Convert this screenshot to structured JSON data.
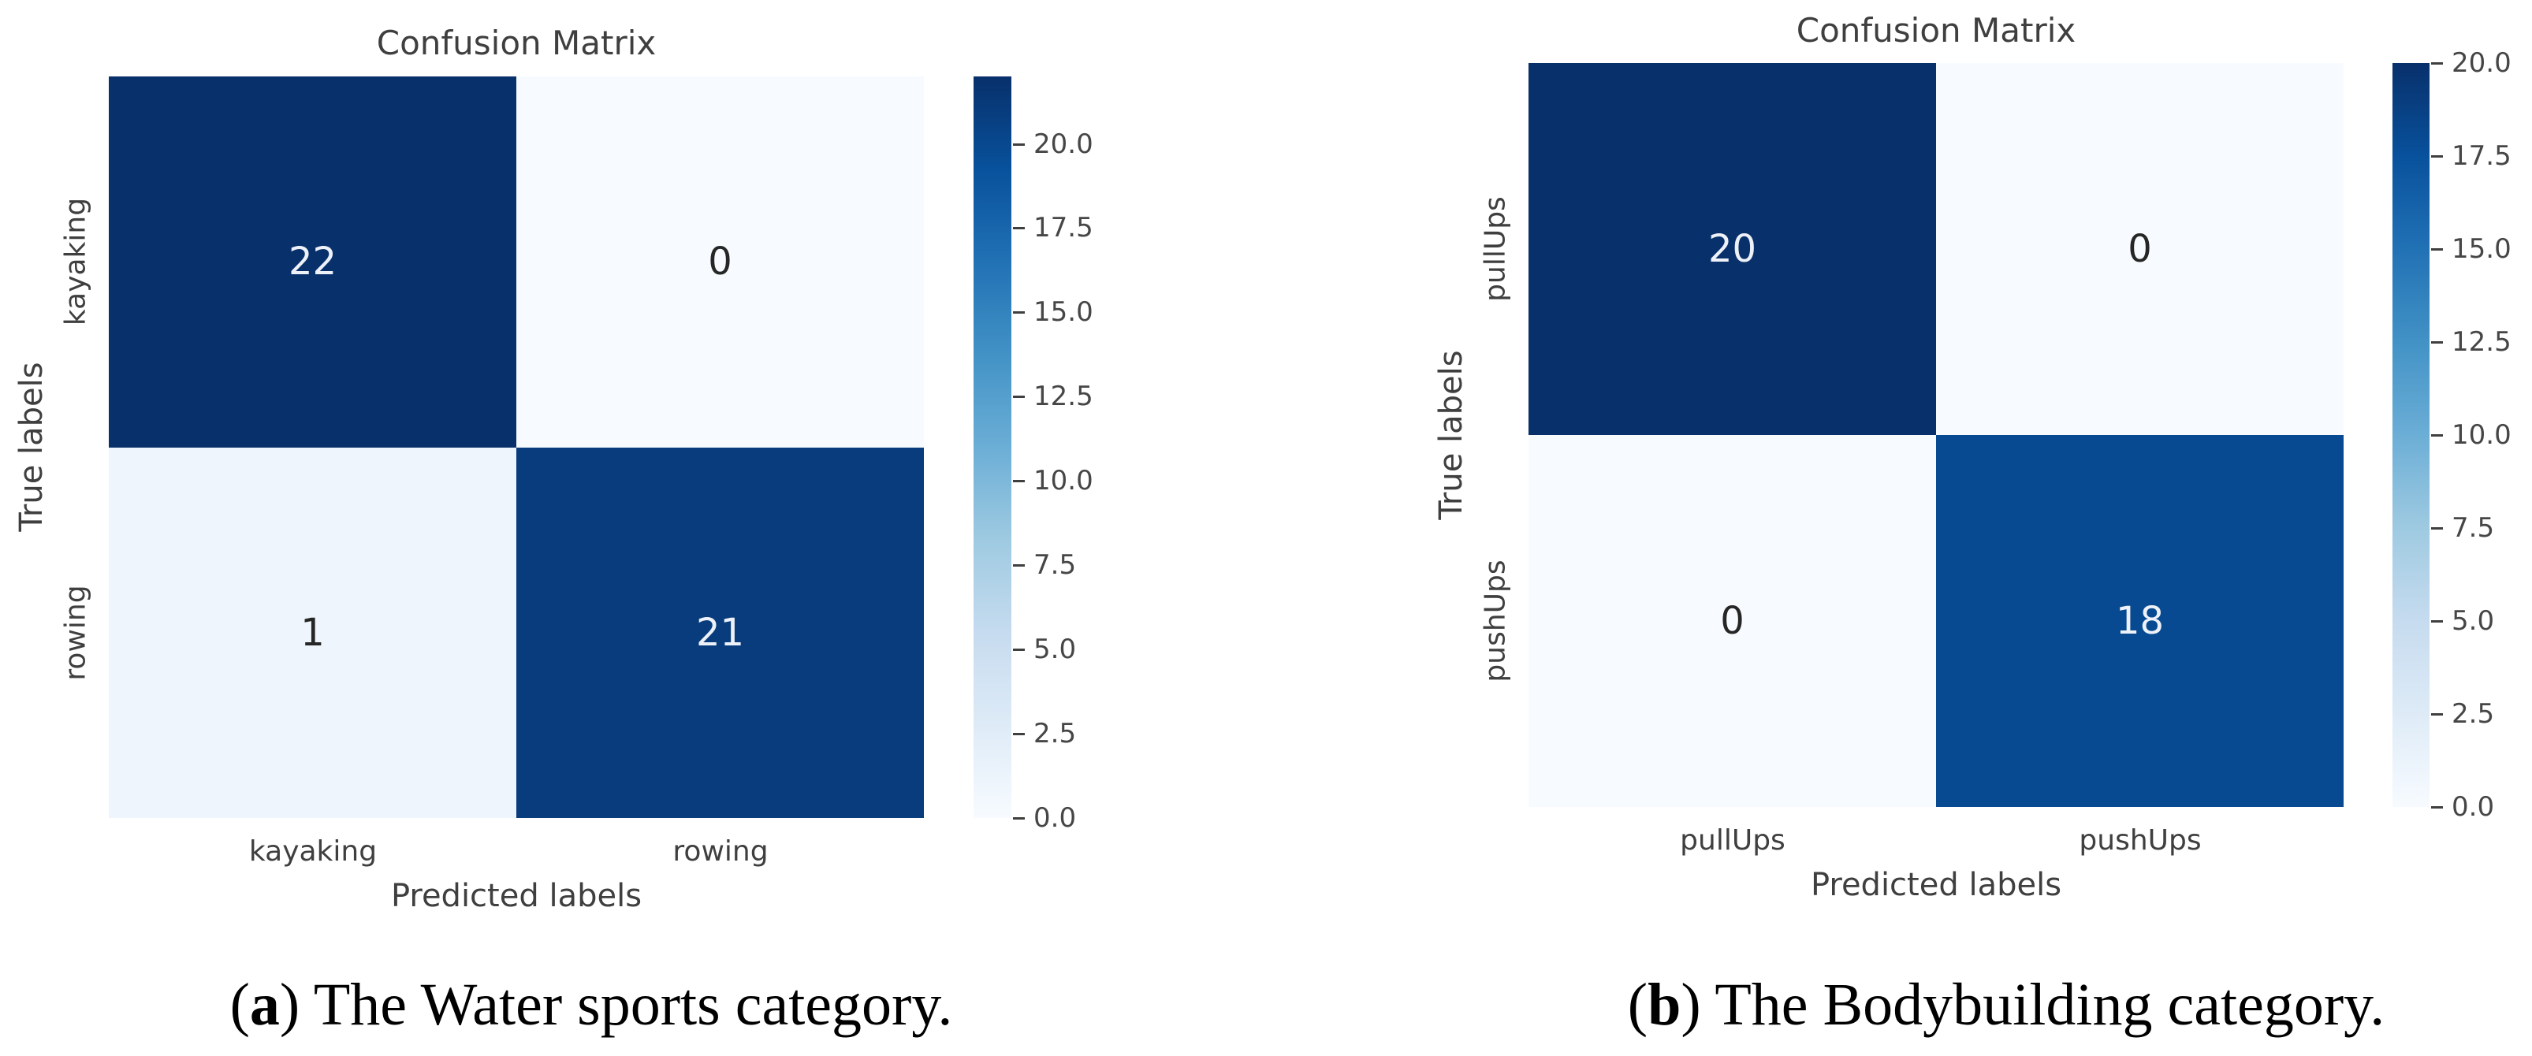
{
  "colors": {
    "background": "#ffffff",
    "colormap_stops": [
      "#f7fbff",
      "#deebf7",
      "#c6dbef",
      "#9ecae1",
      "#6baed6",
      "#4292c6",
      "#2171b5",
      "#08519c",
      "#08306b"
    ],
    "annotation_on_dark": "#eef2f8",
    "annotation_on_light": "#262626",
    "chart_text": "#3f3f3f",
    "caption_text": "#000000"
  },
  "chart_data": [
    {
      "type": "heatmap",
      "title": "Confusion Matrix",
      "xlabel": "Predicted labels",
      "ylabel": "True labels",
      "x_tick_labels": [
        "kayaking",
        "rowing"
      ],
      "y_tick_labels": [
        "kayaking",
        "rowing"
      ],
      "matrix": [
        [
          22,
          0
        ],
        [
          1,
          21
        ]
      ],
      "vmin": 0,
      "vmax": 22,
      "colormap": "Blues",
      "grid": false,
      "colorbar_position": "right",
      "colorbar_ticks": [
        {
          "value": 20.0,
          "label": "20.0"
        },
        {
          "value": 17.5,
          "label": "17.5"
        },
        {
          "value": 15.0,
          "label": "15.0"
        },
        {
          "value": 12.5,
          "label": "12.5"
        },
        {
          "value": 10.0,
          "label": "10.0"
        },
        {
          "value": 7.5,
          "label": "7.5"
        },
        {
          "value": 5.0,
          "label": "5.0"
        },
        {
          "value": 2.5,
          "label": "2.5"
        },
        {
          "value": 0.0,
          "label": "0.0"
        }
      ],
      "caption": {
        "prefix": "(",
        "marker": "a",
        "suffix": ")",
        "text": " The Water sports category."
      }
    },
    {
      "type": "heatmap",
      "title": "Confusion Matrix",
      "xlabel": "Predicted labels",
      "ylabel": "True labels",
      "x_tick_labels": [
        "pullUps",
        "pushUps"
      ],
      "y_tick_labels": [
        "pullUps",
        "pushUps"
      ],
      "matrix": [
        [
          20,
          0
        ],
        [
          0,
          18
        ]
      ],
      "vmin": 0,
      "vmax": 20,
      "colormap": "Blues",
      "grid": false,
      "colorbar_position": "right",
      "colorbar_ticks": [
        {
          "value": 20.0,
          "label": "20.0"
        },
        {
          "value": 17.5,
          "label": "17.5"
        },
        {
          "value": 15.0,
          "label": "15.0"
        },
        {
          "value": 12.5,
          "label": "12.5"
        },
        {
          "value": 10.0,
          "label": "10.0"
        },
        {
          "value": 7.5,
          "label": "7.5"
        },
        {
          "value": 5.0,
          "label": "5.0"
        },
        {
          "value": 2.5,
          "label": "2.5"
        },
        {
          "value": 0.0,
          "label": "0.0"
        }
      ],
      "caption": {
        "prefix": "(",
        "marker": "b",
        "suffix": ")",
        "text": " The Bodybuilding category."
      }
    }
  ]
}
